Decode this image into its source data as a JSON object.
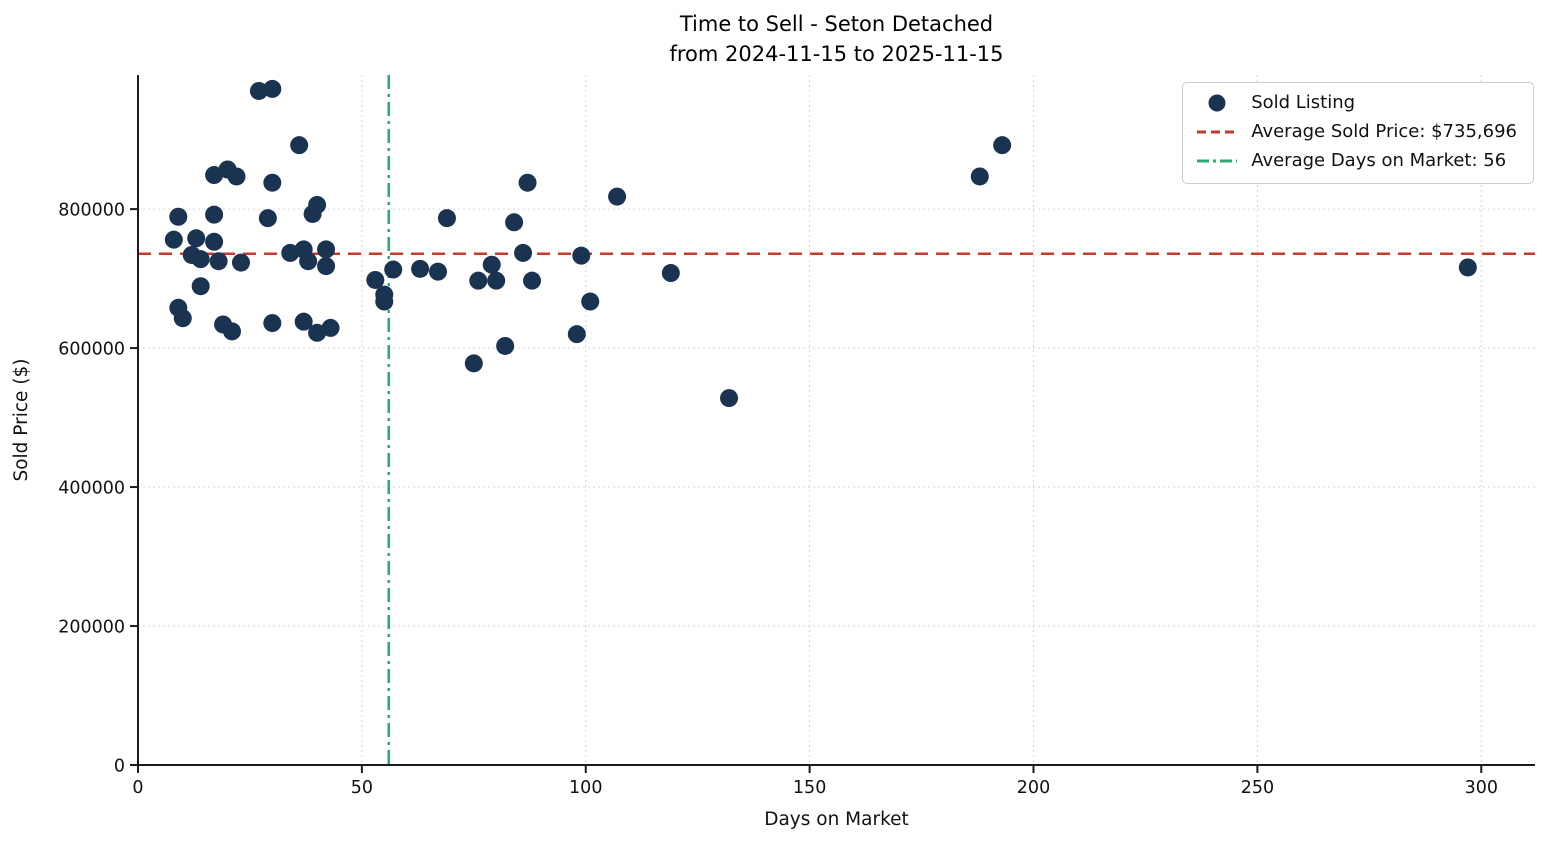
{
  "chart_data": {
    "type": "scatter",
    "title": "Time to Sell - Seton Detached",
    "subtitle": "from 2024-11-15 to 2025-11-15",
    "xlabel": "Days on Market",
    "ylabel": "Sold Price ($)",
    "xlim": [
      0,
      312
    ],
    "ylim": [
      0,
      993000
    ],
    "x_ticks": [
      0,
      50,
      100,
      150,
      200,
      250,
      300
    ],
    "y_ticks": [
      0,
      200000,
      400000,
      600000,
      800000
    ],
    "grid": true,
    "grid_color": "#cccccc",
    "legend_position": "upper right",
    "series": [
      {
        "name": "Sold Listing",
        "type": "scatter",
        "color": "#1a3350",
        "points": [
          [
            8,
            756000
          ],
          [
            9,
            658000
          ],
          [
            9,
            789000
          ],
          [
            10,
            643000
          ],
          [
            12,
            734000
          ],
          [
            13,
            758000
          ],
          [
            14,
            728000
          ],
          [
            14,
            689000
          ],
          [
            17,
            849000
          ],
          [
            17,
            792000
          ],
          [
            17,
            753000
          ],
          [
            18,
            725000
          ],
          [
            19,
            634000
          ],
          [
            20,
            857000
          ],
          [
            21,
            624000
          ],
          [
            22,
            847000
          ],
          [
            23,
            723000
          ],
          [
            27,
            970000
          ],
          [
            29,
            787000
          ],
          [
            30,
            973000
          ],
          [
            30,
            838000
          ],
          [
            30,
            636000
          ],
          [
            34,
            737000
          ],
          [
            36,
            892000
          ],
          [
            37,
            742000
          ],
          [
            37,
            638000
          ],
          [
            38,
            725000
          ],
          [
            39,
            793000
          ],
          [
            40,
            806000
          ],
          [
            40,
            622000
          ],
          [
            42,
            742000
          ],
          [
            42,
            718000
          ],
          [
            43,
            629000
          ],
          [
            53,
            698000
          ],
          [
            55,
            677000
          ],
          [
            55,
            667000
          ],
          [
            57,
            713000
          ],
          [
            63,
            714000
          ],
          [
            67,
            710000
          ],
          [
            69,
            787000
          ],
          [
            75,
            578000
          ],
          [
            76,
            697000
          ],
          [
            79,
            720000
          ],
          [
            80,
            697000
          ],
          [
            82,
            603000
          ],
          [
            84,
            781000
          ],
          [
            86,
            737000
          ],
          [
            87,
            838000
          ],
          [
            88,
            697000
          ],
          [
            98,
            620000
          ],
          [
            99,
            733000
          ],
          [
            101,
            667000
          ],
          [
            107,
            818000
          ],
          [
            119,
            708000
          ],
          [
            132,
            528000
          ],
          [
            188,
            847000
          ],
          [
            193,
            892000
          ],
          [
            297,
            716000
          ]
        ]
      },
      {
        "name": "Average Sold Price: $735,696",
        "type": "hline",
        "value": 735696,
        "color": "#c23b2d",
        "style": "dashed"
      },
      {
        "name": "Average Days on Market: 56",
        "type": "vline",
        "value": 56,
        "color": "#2fa874",
        "style": "dashdot"
      }
    ]
  }
}
